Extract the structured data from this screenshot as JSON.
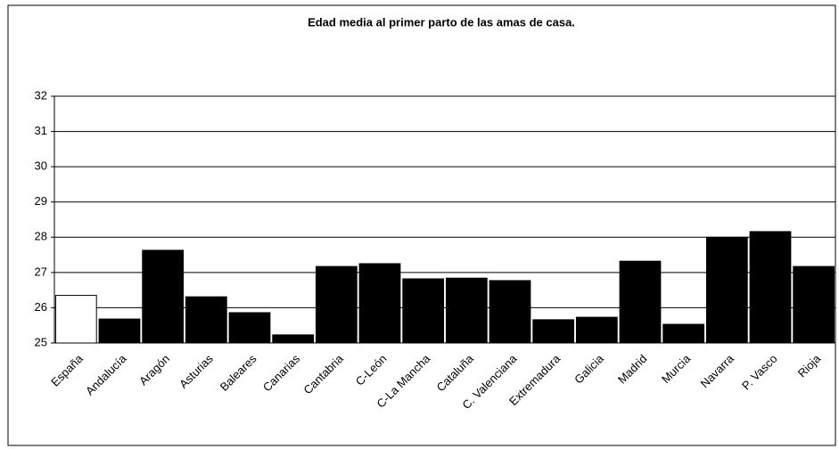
{
  "chart_data": {
    "type": "bar",
    "title": "Edad media al primer parto de las amas de casa.",
    "categories": [
      "España",
      "Andalucía",
      "Aragón",
      "Asturias",
      "Baleares",
      "Canarias",
      "Cantabria",
      "C-León",
      "C-La Mancha",
      "Cataluña",
      "C. Valenciana",
      "Extremadura",
      "Galicia",
      "Madrid",
      "Murcia",
      "Navarra",
      "P. Vasco",
      "Rioja"
    ],
    "values": [
      26.35,
      25.68,
      27.63,
      26.31,
      25.86,
      25.23,
      27.17,
      27.25,
      26.82,
      26.84,
      26.77,
      25.66,
      25.73,
      27.32,
      25.53,
      28.0,
      28.16,
      27.17
    ],
    "colors": [
      "#ffffff",
      "#000000",
      "#000000",
      "#000000",
      "#000000",
      "#000000",
      "#000000",
      "#000000",
      "#000000",
      "#000000",
      "#000000",
      "#000000",
      "#000000",
      "#000000",
      "#000000",
      "#000000",
      "#000000",
      "#000000"
    ],
    "ylim": [
      25,
      32
    ],
    "yticks": [
      25,
      26,
      27,
      28,
      29,
      30,
      31,
      32
    ],
    "grid": true
  }
}
